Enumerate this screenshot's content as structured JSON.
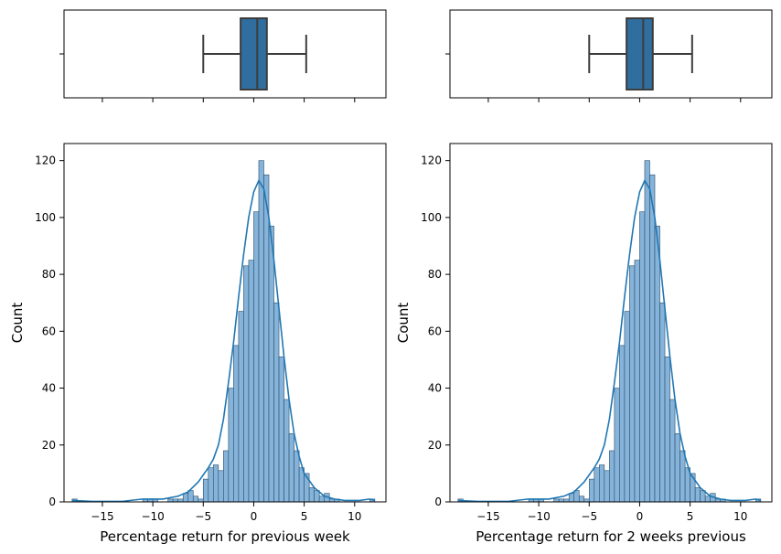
{
  "colors": {
    "bar_fill": "#86b3d9",
    "bar_edge": "#2a4f6b",
    "kde_line": "#1f77b4",
    "box_fill": "#2f6e9e",
    "box_line": "#3d3d3d",
    "axes_edge": "#000000"
  },
  "chart_data": [
    {
      "panel": "left",
      "type": "bar",
      "subtype": "histogram_with_kde_and_boxplot",
      "title": "",
      "xlabel": "Percentage return for previous week",
      "ylabel": "Count",
      "xlim": [
        -18.8,
        13.1
      ],
      "ylim": [
        0,
        126
      ],
      "xticks": [
        -15,
        -10,
        -5,
        0,
        5,
        10
      ],
      "xtick_labels": [
        "−15",
        "−10",
        "−5",
        "0",
        "5",
        "10"
      ],
      "yticks": [
        0,
        20,
        40,
        60,
        80,
        100,
        120
      ],
      "ytick_labels": [
        "0",
        "20",
        "40",
        "60",
        "80",
        "100",
        "120"
      ],
      "bin_width": 0.5,
      "bins": [
        {
          "x": -18.0,
          "count": 1
        },
        {
          "x": -11.0,
          "count": 1
        },
        {
          "x": -10.5,
          "count": 1
        },
        {
          "x": -10.0,
          "count": 1
        },
        {
          "x": -8.5,
          "count": 1
        },
        {
          "x": -8.0,
          "count": 1
        },
        {
          "x": -7.5,
          "count": 1
        },
        {
          "x": -7.0,
          "count": 3
        },
        {
          "x": -6.5,
          "count": 4
        },
        {
          "x": -6.0,
          "count": 2
        },
        {
          "x": -5.5,
          "count": 1
        },
        {
          "x": -5.0,
          "count": 8
        },
        {
          "x": -4.5,
          "count": 12
        },
        {
          "x": -4.0,
          "count": 13
        },
        {
          "x": -3.5,
          "count": 11
        },
        {
          "x": -3.0,
          "count": 18
        },
        {
          "x": -2.5,
          "count": 40
        },
        {
          "x": -2.0,
          "count": 55
        },
        {
          "x": -1.5,
          "count": 67
        },
        {
          "x": -1.0,
          "count": 83
        },
        {
          "x": -0.5,
          "count": 85
        },
        {
          "x": 0.0,
          "count": 102
        },
        {
          "x": 0.5,
          "count": 120
        },
        {
          "x": 1.0,
          "count": 115
        },
        {
          "x": 1.5,
          "count": 97
        },
        {
          "x": 2.0,
          "count": 70
        },
        {
          "x": 2.5,
          "count": 51
        },
        {
          "x": 3.0,
          "count": 36
        },
        {
          "x": 3.5,
          "count": 24
        },
        {
          "x": 4.0,
          "count": 18
        },
        {
          "x": 4.5,
          "count": 12
        },
        {
          "x": 5.0,
          "count": 10
        },
        {
          "x": 5.5,
          "count": 5
        },
        {
          "x": 6.0,
          "count": 4
        },
        {
          "x": 6.5,
          "count": 2
        },
        {
          "x": 7.0,
          "count": 3
        },
        {
          "x": 7.5,
          "count": 1
        },
        {
          "x": 8.0,
          "count": 1
        },
        {
          "x": 11.5,
          "count": 1
        }
      ],
      "kde": [
        {
          "x": -18,
          "y": 0.5
        },
        {
          "x": -16,
          "y": 0.2
        },
        {
          "x": -13,
          "y": 0.2
        },
        {
          "x": -11,
          "y": 1
        },
        {
          "x": -9,
          "y": 1
        },
        {
          "x": -7.5,
          "y": 2
        },
        {
          "x": -6.5,
          "y": 3.5
        },
        {
          "x": -5.5,
          "y": 7
        },
        {
          "x": -4.5,
          "y": 12
        },
        {
          "x": -4,
          "y": 15
        },
        {
          "x": -3.5,
          "y": 20
        },
        {
          "x": -3,
          "y": 29
        },
        {
          "x": -2.5,
          "y": 42
        },
        {
          "x": -2,
          "y": 56
        },
        {
          "x": -1.5,
          "y": 72
        },
        {
          "x": -1,
          "y": 87
        },
        {
          "x": -0.5,
          "y": 100
        },
        {
          "x": 0,
          "y": 109
        },
        {
          "x": 0.5,
          "y": 113
        },
        {
          "x": 1,
          "y": 110
        },
        {
          "x": 1.5,
          "y": 100
        },
        {
          "x": 2,
          "y": 85
        },
        {
          "x": 2.5,
          "y": 68
        },
        {
          "x": 3,
          "y": 51
        },
        {
          "x": 3.5,
          "y": 36
        },
        {
          "x": 4,
          "y": 24
        },
        {
          "x": 4.5,
          "y": 16
        },
        {
          "x": 5,
          "y": 10
        },
        {
          "x": 6,
          "y": 5
        },
        {
          "x": 7,
          "y": 2
        },
        {
          "x": 8,
          "y": 1
        },
        {
          "x": 9,
          "y": 0.5
        },
        {
          "x": 10.5,
          "y": 0.5
        },
        {
          "x": 11.5,
          "y": 1
        },
        {
          "x": 12,
          "y": 0.5
        }
      ],
      "boxplot": {
        "whisker_low": -5.0,
        "q1": -1.3,
        "median": 0.35,
        "q3": 1.3,
        "whisker_high": 5.2
      }
    },
    {
      "panel": "right",
      "type": "bar",
      "subtype": "histogram_with_kde_and_boxplot",
      "title": "",
      "xlabel": "Percentage return for 2 weeks previous",
      "ylabel": "Count",
      "xlim": [
        -18.8,
        13.1
      ],
      "ylim": [
        0,
        126
      ],
      "xticks": [
        -15,
        -10,
        -5,
        0,
        5,
        10
      ],
      "xtick_labels": [
        "−15",
        "−10",
        "−5",
        "0",
        "5",
        "10"
      ],
      "yticks": [
        0,
        20,
        40,
        60,
        80,
        100,
        120
      ],
      "ytick_labels": [
        "0",
        "20",
        "40",
        "60",
        "80",
        "100",
        "120"
      ],
      "bin_width": 0.5,
      "bins": [
        {
          "x": -18.0,
          "count": 1
        },
        {
          "x": -11.0,
          "count": 1
        },
        {
          "x": -10.5,
          "count": 1
        },
        {
          "x": -10.0,
          "count": 1
        },
        {
          "x": -8.5,
          "count": 1
        },
        {
          "x": -8.0,
          "count": 1
        },
        {
          "x": -7.5,
          "count": 1
        },
        {
          "x": -7.0,
          "count": 3
        },
        {
          "x": -6.5,
          "count": 4
        },
        {
          "x": -6.0,
          "count": 2
        },
        {
          "x": -5.5,
          "count": 1
        },
        {
          "x": -5.0,
          "count": 8
        },
        {
          "x": -4.5,
          "count": 12
        },
        {
          "x": -4.0,
          "count": 13
        },
        {
          "x": -3.5,
          "count": 11
        },
        {
          "x": -3.0,
          "count": 18
        },
        {
          "x": -2.5,
          "count": 40
        },
        {
          "x": -2.0,
          "count": 55
        },
        {
          "x": -1.5,
          "count": 67
        },
        {
          "x": -1.0,
          "count": 83
        },
        {
          "x": -0.5,
          "count": 85
        },
        {
          "x": 0.0,
          "count": 102
        },
        {
          "x": 0.5,
          "count": 120
        },
        {
          "x": 1.0,
          "count": 115
        },
        {
          "x": 1.5,
          "count": 97
        },
        {
          "x": 2.0,
          "count": 70
        },
        {
          "x": 2.5,
          "count": 51
        },
        {
          "x": 3.0,
          "count": 36
        },
        {
          "x": 3.5,
          "count": 24
        },
        {
          "x": 4.0,
          "count": 18
        },
        {
          "x": 4.5,
          "count": 12
        },
        {
          "x": 5.0,
          "count": 10
        },
        {
          "x": 5.5,
          "count": 5
        },
        {
          "x": 6.0,
          "count": 4
        },
        {
          "x": 6.5,
          "count": 2
        },
        {
          "x": 7.0,
          "count": 3
        },
        {
          "x": 7.5,
          "count": 1
        },
        {
          "x": 8.0,
          "count": 1
        },
        {
          "x": 11.5,
          "count": 1
        }
      ],
      "kde": [
        {
          "x": -18,
          "y": 0.5
        },
        {
          "x": -16,
          "y": 0.2
        },
        {
          "x": -13,
          "y": 0.2
        },
        {
          "x": -11,
          "y": 1
        },
        {
          "x": -9,
          "y": 1
        },
        {
          "x": -7.5,
          "y": 2
        },
        {
          "x": -6.5,
          "y": 3.5
        },
        {
          "x": -5.5,
          "y": 7
        },
        {
          "x": -4.5,
          "y": 12
        },
        {
          "x": -4,
          "y": 15
        },
        {
          "x": -3.5,
          "y": 20
        },
        {
          "x": -3,
          "y": 29
        },
        {
          "x": -2.5,
          "y": 42
        },
        {
          "x": -2,
          "y": 56
        },
        {
          "x": -1.5,
          "y": 72
        },
        {
          "x": -1,
          "y": 87
        },
        {
          "x": -0.5,
          "y": 100
        },
        {
          "x": 0,
          "y": 109
        },
        {
          "x": 0.5,
          "y": 113
        },
        {
          "x": 1,
          "y": 110
        },
        {
          "x": 1.5,
          "y": 100
        },
        {
          "x": 2,
          "y": 85
        },
        {
          "x": 2.5,
          "y": 68
        },
        {
          "x": 3,
          "y": 51
        },
        {
          "x": 3.5,
          "y": 36
        },
        {
          "x": 4,
          "y": 24
        },
        {
          "x": 4.5,
          "y": 16
        },
        {
          "x": 5,
          "y": 10
        },
        {
          "x": 6,
          "y": 5
        },
        {
          "x": 7,
          "y": 2
        },
        {
          "x": 8,
          "y": 1
        },
        {
          "x": 9,
          "y": 0.5
        },
        {
          "x": 10.5,
          "y": 0.5
        },
        {
          "x": 11.5,
          "y": 1
        },
        {
          "x": 12,
          "y": 0.5
        }
      ],
      "boxplot": {
        "whisker_low": -5.0,
        "q1": -1.3,
        "median": 0.35,
        "q3": 1.3,
        "whisker_high": 5.2
      }
    }
  ]
}
